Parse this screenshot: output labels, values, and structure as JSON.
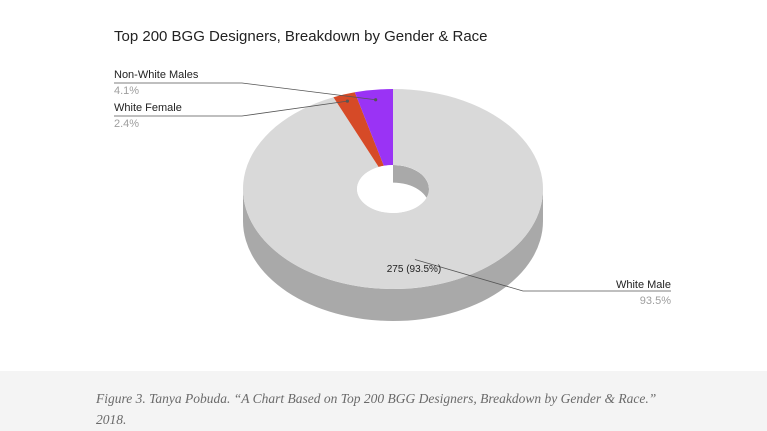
{
  "chart_data": {
    "type": "pie",
    "variant": "3d-donut",
    "title": "Top 200 BGG Designers, Breakdown by Gender & Race",
    "slices": [
      {
        "name": "White Male",
        "percent_label": "93.5%",
        "value_label": "275 (93.5%)",
        "percent": 93.5,
        "color": "#d9d9d9",
        "side_color": "#a9a9a9"
      },
      {
        "name": "White Female",
        "percent_label": "2.4%",
        "percent": 2.4,
        "color": "#d64a27",
        "side_color": "#9c3418"
      },
      {
        "name": "Non-White Males",
        "percent_label": "4.1%",
        "percent": 4.1,
        "color": "#9a33f5",
        "side_color": "#6b1fb0"
      }
    ],
    "legend": "callout labels"
  },
  "caption": "Figure 3. Tanya Pobuda. “A Chart Based on Top 200 BGG Designers, Breakdown by Gender & Race.” 2018."
}
